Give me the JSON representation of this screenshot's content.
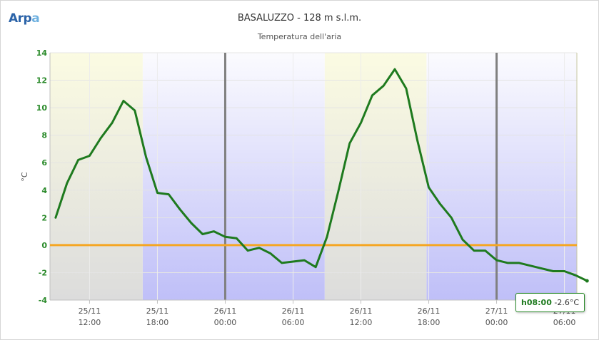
{
  "logo": {
    "text_main": "Arp",
    "text_accent": "a"
  },
  "chart_data": {
    "type": "line",
    "title": "BASALUZZO - 128 m s.l.m.",
    "subtitle": "Temperatura dell'aria",
    "ylabel": "°C",
    "ylim": [
      -4,
      14
    ],
    "yticks": [
      14,
      12,
      10,
      8,
      6,
      4,
      2,
      0,
      -2,
      -4
    ],
    "x_unit": "hours",
    "xlim": [
      8.5,
      55.1
    ],
    "xticks": [
      {
        "x": 12,
        "date": "25/11",
        "time": "12:00"
      },
      {
        "x": 18,
        "date": "25/11",
        "time": "18:00"
      },
      {
        "x": 24,
        "date": "26/11",
        "time": "00:00"
      },
      {
        "x": 30,
        "date": "26/11",
        "time": "06:00"
      },
      {
        "x": 36,
        "date": "26/11",
        "time": "12:00"
      },
      {
        "x": 42,
        "date": "26/11",
        "time": "18:00"
      },
      {
        "x": 48,
        "date": "27/11",
        "time": "00:00"
      },
      {
        "x": 54,
        "date": "27/11",
        "time": "06:00"
      }
    ],
    "day_bands": [
      [
        8.5,
        16.7
      ],
      [
        32.8,
        41.8
      ]
    ],
    "night_bands": [
      [
        16.7,
        32.8
      ],
      [
        41.8,
        55.1
      ]
    ],
    "day_separators": [
      24,
      48
    ],
    "reference_line": 0,
    "colors": {
      "line": "#1e7a1e",
      "zero_line": "#f5a623",
      "separator": "#808080"
    },
    "series": [
      {
        "points": [
          [
            9.0,
            2.0
          ],
          [
            10.0,
            4.5
          ],
          [
            11.0,
            6.2
          ],
          [
            12.0,
            6.5
          ],
          [
            13.0,
            7.8
          ],
          [
            14.0,
            8.9
          ],
          [
            15.0,
            10.5
          ],
          [
            16.0,
            9.8
          ],
          [
            17.0,
            6.4
          ],
          [
            18.0,
            3.8
          ],
          [
            19.0,
            3.7
          ],
          [
            20.0,
            2.6
          ],
          [
            21.0,
            1.6
          ],
          [
            22.0,
            0.8
          ],
          [
            23.0,
            1.0
          ],
          [
            24.0,
            0.6
          ],
          [
            25.0,
            0.5
          ],
          [
            26.0,
            -0.4
          ],
          [
            27.0,
            -0.2
          ],
          [
            28.0,
            -0.6
          ],
          [
            29.0,
            -1.3
          ],
          [
            30.0,
            -1.2
          ],
          [
            31.0,
            -1.1
          ],
          [
            32.0,
            -1.6
          ],
          [
            33.0,
            0.6
          ],
          [
            34.0,
            3.9
          ],
          [
            35.0,
            7.4
          ],
          [
            36.0,
            8.9
          ],
          [
            37.0,
            10.9
          ],
          [
            38.0,
            11.6
          ],
          [
            39.0,
            12.8
          ],
          [
            40.0,
            11.4
          ],
          [
            41.0,
            7.6
          ],
          [
            42.0,
            4.2
          ],
          [
            43.0,
            3.0
          ],
          [
            44.0,
            2.0
          ],
          [
            45.0,
            0.4
          ],
          [
            46.0,
            -0.4
          ],
          [
            47.0,
            -0.4
          ],
          [
            48.0,
            -1.1
          ],
          [
            49.0,
            -1.3
          ],
          [
            50.0,
            -1.3
          ],
          [
            51.0,
            -1.5
          ],
          [
            52.0,
            -1.7
          ],
          [
            53.0,
            -1.9
          ],
          [
            54.0,
            -1.9
          ],
          [
            55.0,
            -2.2
          ],
          [
            56.0,
            -2.6
          ]
        ]
      }
    ],
    "tooltip": {
      "time": "h08:00",
      "value": "-2.6°C"
    }
  }
}
